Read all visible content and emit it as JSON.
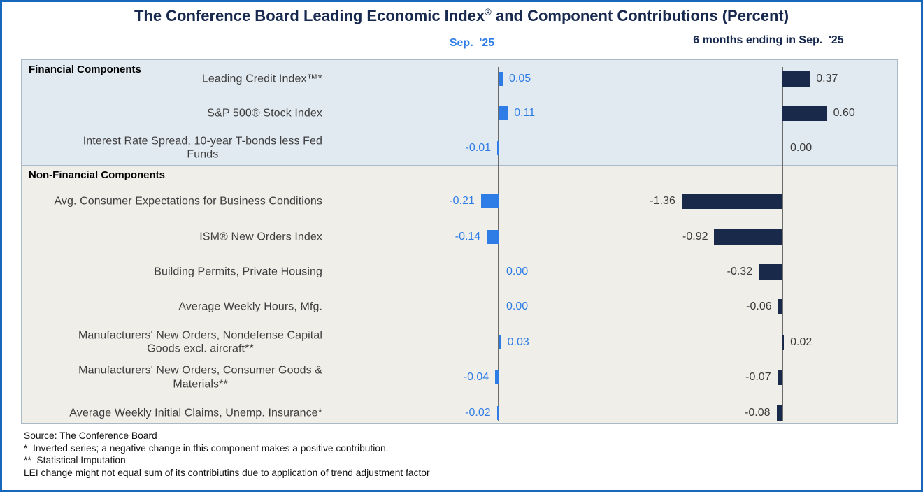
{
  "title": {
    "pre": "The Conference Board Leading Economic Index",
    "sup": "®",
    "post": " and Component Contributions (Percent)"
  },
  "column_headers": {
    "sep": "Sep.  '25",
    "six_month": "6 months ending in Sep.  '25"
  },
  "sections": {
    "financial": "Financial Components",
    "non_financial": "Non-Financial Components"
  },
  "rows": [
    {
      "section": "financial",
      "label": "Leading Credit Index™*",
      "sep": 0.05,
      "six": 0.37
    },
    {
      "section": "financial",
      "label": "S&P 500® Stock Index",
      "sep": 0.11,
      "six": 0.6
    },
    {
      "section": "financial",
      "label": "Interest Rate Spread, 10-year T-bonds less Fed\nFunds",
      "sep": -0.01,
      "six": 0.0
    },
    {
      "section": "non_financial",
      "label": "Avg. Consumer Expectations for Business Conditions",
      "sep": -0.21,
      "six": -1.36
    },
    {
      "section": "non_financial",
      "label": "ISM® New Orders Index",
      "sep": -0.14,
      "six": -0.92
    },
    {
      "section": "non_financial",
      "label": "Building Permits, Private Housing",
      "sep": 0.0,
      "six": -0.32
    },
    {
      "section": "non_financial",
      "label": "Average Weekly Hours, Mfg.",
      "sep": 0.0,
      "six": -0.06
    },
    {
      "section": "non_financial",
      "label": "Manufacturers' New Orders, Nondefense Capital\nGoods excl. aircraft**",
      "sep": 0.03,
      "six": 0.02
    },
    {
      "section": "non_financial",
      "label": "Manufacturers' New Orders, Consumer Goods &\nMaterials**",
      "sep": -0.04,
      "six": -0.07
    },
    {
      "section": "non_financial",
      "label": "Average Weekly Initial Claims, Unemp. Insurance*",
      "sep": -0.02,
      "six": -0.08
    }
  ],
  "chart_data": {
    "type": "bar",
    "orientation": "horizontal",
    "title": "The Conference Board Leading Economic Index® and Component Contributions (Percent)",
    "categories": [
      "Leading Credit Index™*",
      "S&P 500® Stock Index",
      "Interest Rate Spread, 10-year T-bonds less Fed Funds",
      "Avg. Consumer Expectations for Business Conditions",
      "ISM® New Orders Index",
      "Building Permits, Private Housing",
      "Average Weekly Hours, Mfg.",
      "Manufacturers' New Orders, Nondefense Capital Goods excl. aircraft**",
      "Manufacturers' New Orders, Consumer Goods & Materials**",
      "Average Weekly Initial Claims, Unemp. Insurance*"
    ],
    "category_groups": [
      "Financial Components",
      "Financial Components",
      "Financial Components",
      "Non-Financial Components",
      "Non-Financial Components",
      "Non-Financial Components",
      "Non-Financial Components",
      "Non-Financial Components",
      "Non-Financial Components",
      "Non-Financial Components"
    ],
    "series": [
      {
        "name": "Sep. '25",
        "color": "#2E7DE6",
        "values": [
          0.05,
          0.11,
          -0.01,
          -0.21,
          -0.14,
          0.0,
          0.0,
          0.03,
          -0.04,
          -0.02
        ]
      },
      {
        "name": "6 months ending in Sep. '25",
        "color": "#18294A",
        "values": [
          0.37,
          0.6,
          0.0,
          -1.36,
          -0.92,
          -0.32,
          -0.06,
          0.02,
          -0.07,
          -0.08
        ]
      }
    ],
    "data_labels_shown": true,
    "legend_position": "top-as-column-headers",
    "grid": false
  },
  "colors": {
    "sep_accent": "#2E7DE6",
    "six_month_accent": "#18294A",
    "title_navy": "#17294E",
    "financial_bg": "#E2EAF1",
    "non_financial_bg": "#EFEEE9",
    "outer_border": "#1767BB",
    "axis": "#6B6B6B"
  },
  "footnotes": [
    "Source: The Conference Board",
    "*  Inverted series; a negative change in this component makes a positive contribution.",
    "**  Statistical Imputation",
    "LEI change might not equal sum of its contribiutins due to application of trend adjustment factor"
  ]
}
